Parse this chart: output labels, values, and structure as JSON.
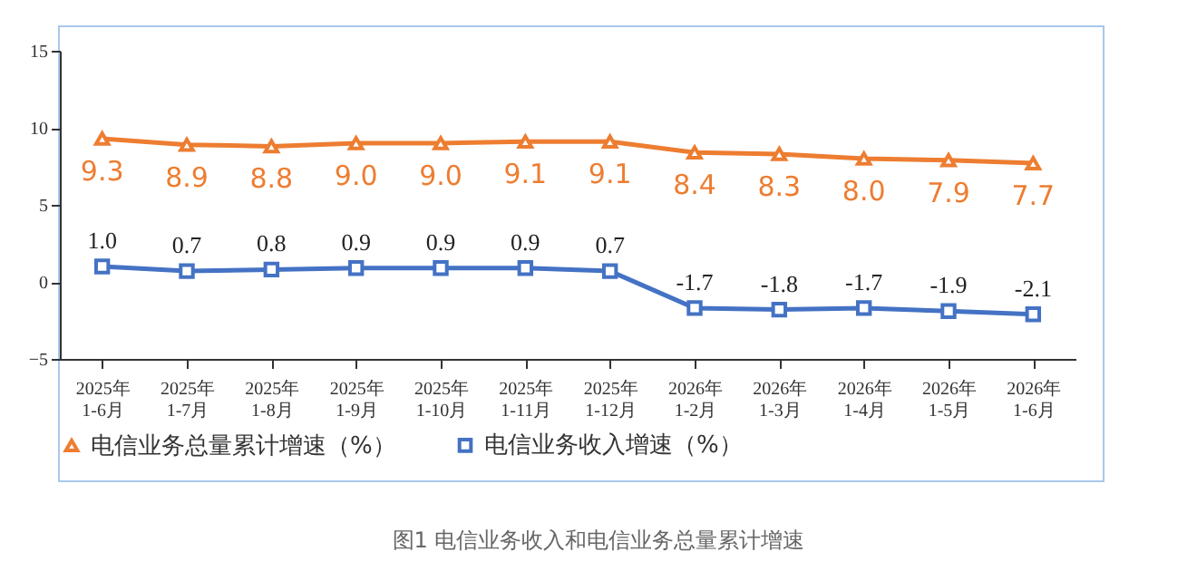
{
  "chart_data": {
    "type": "line",
    "categories": [
      "2025年 1-6月",
      "2025年 1-7月",
      "2025年 1-8月",
      "2025年 1-9月",
      "2025年 1-10月",
      "2025年 1-11月",
      "2025年 1-12月",
      "2026年 1-2月",
      "2026年 1-3月",
      "2026年 1-4月",
      "2026年 1-5月",
      "2026年 1-6月"
    ],
    "series": [
      {
        "name": "电信业务总量累计增速（%）",
        "color": "#ed7d31",
        "marker": "triangle",
        "values": [
          9.3,
          8.9,
          8.8,
          9.0,
          9.0,
          9.1,
          9.1,
          8.4,
          8.3,
          8.0,
          7.9,
          7.7
        ],
        "value_labels": [
          "9.3",
          "8.9",
          "8.8",
          "9.0",
          "9.0",
          "9.1",
          "9.1",
          "8.4",
          "8.3",
          "8.0",
          "7.9",
          "7.7"
        ]
      },
      {
        "name": "电信业务收入增速（%）",
        "color": "#4472c4",
        "marker": "square",
        "values": [
          1.0,
          0.7,
          0.8,
          0.9,
          0.9,
          0.9,
          0.7,
          -1.7,
          -1.8,
          -1.7,
          -1.9,
          -2.1
        ],
        "value_labels": [
          "1.0",
          "0.7",
          "0.8",
          "0.9",
          "0.9",
          "0.9",
          "0.7",
          "-1.7",
          "-1.8",
          "-1.7",
          "-1.9",
          "-2.1"
        ]
      }
    ],
    "ylim": [
      -5,
      15
    ],
    "yticks": [
      -5,
      0,
      5,
      10,
      15
    ],
    "grid": false,
    "legend": "bottom",
    "annotations": [
      "图1 电信业务收入和电信业务总量累计增速"
    ]
  }
}
